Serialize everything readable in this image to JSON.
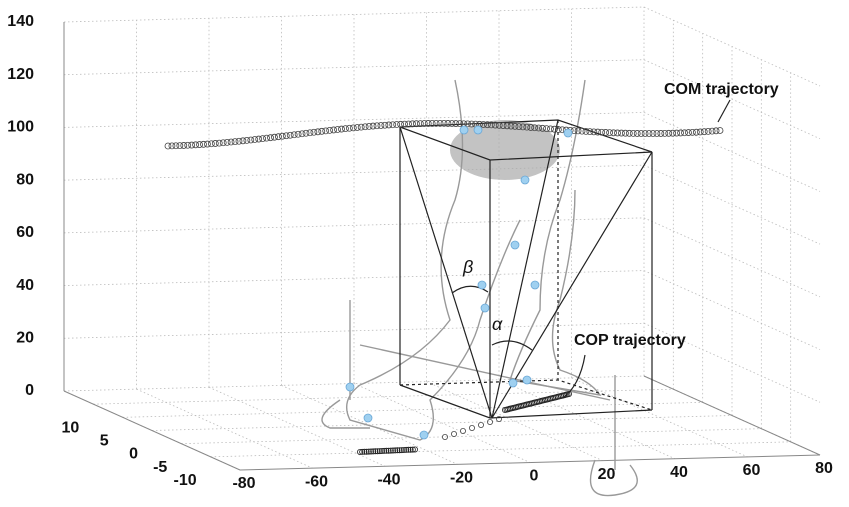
{
  "axes": {
    "x_ticks": [
      -80,
      -60,
      -40,
      -20,
      0,
      20,
      40,
      60,
      80
    ],
    "y_ticks": [
      10,
      5,
      0,
      -5,
      -10
    ],
    "z_ticks": [
      0,
      20,
      40,
      60,
      80,
      100,
      120,
      140
    ]
  },
  "annotations": {
    "com": "COM trajectory",
    "cop": "COP trajectory",
    "beta": "β",
    "alpha": "α"
  }
}
